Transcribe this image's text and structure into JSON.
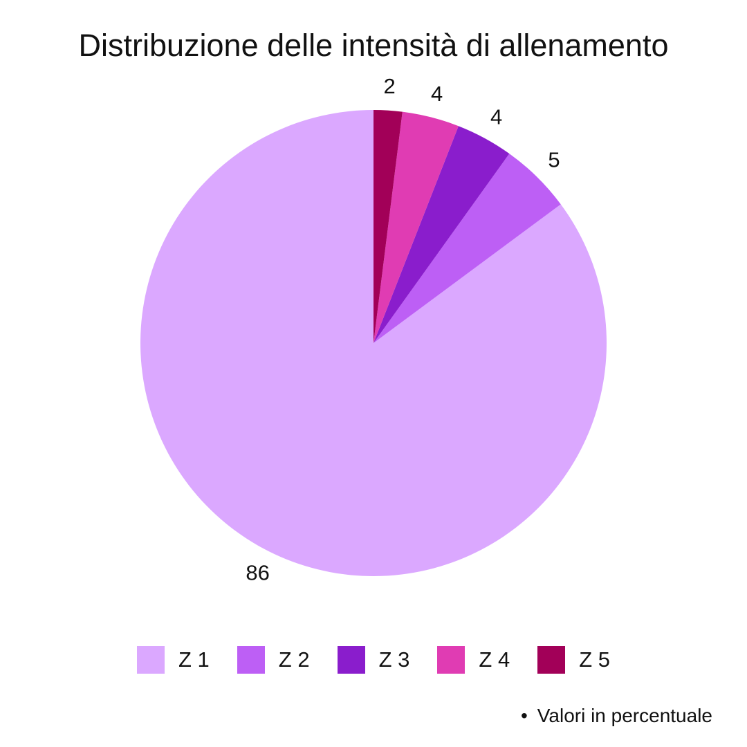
{
  "chart_data": {
    "type": "pie",
    "title": "Distribuzione delle intensità di allenamento",
    "categories": [
      "Z 1",
      "Z 2",
      "Z 3",
      "Z 4",
      "Z 5"
    ],
    "values": [
      86,
      5,
      4,
      4,
      2
    ],
    "data_labels": [
      "86",
      "5",
      "4",
      "4",
      "2"
    ],
    "colors": [
      "#dba8ff",
      "#bd5ff5",
      "#8a1dcc",
      "#e03cb3",
      "#a20058"
    ],
    "start_angle": "12 o'clock",
    "direction": "counter-clockwise",
    "legend_position": "bottom",
    "note": "Valori in percentuale"
  }
}
